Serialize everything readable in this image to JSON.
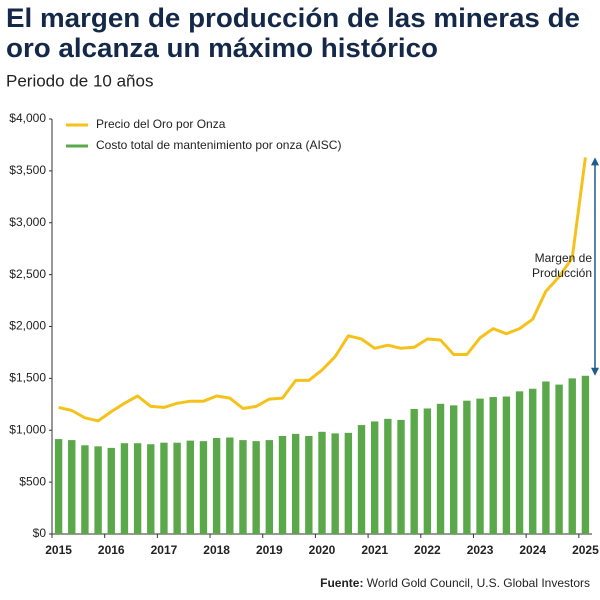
{
  "chart_data": {
    "type": "bar-line",
    "title": [
      "El margen de producción de las mineras de",
      "oro alcanza un máximo histórico"
    ],
    "subtitle": "Periodo de 10 años",
    "source": {
      "label": "Fuente:",
      "text": "World Gold Council, U.S. Global Investors"
    },
    "categories": [
      "2015",
      null,
      null,
      null,
      "2016",
      null,
      null,
      null,
      "2017",
      null,
      null,
      null,
      "2018",
      null,
      null,
      null,
      "2019",
      null,
      null,
      null,
      "2020",
      null,
      null,
      null,
      "2021",
      null,
      null,
      null,
      "2022",
      null,
      null,
      null,
      "2023",
      null,
      null,
      null,
      "2024",
      null,
      null,
      null,
      "2025"
    ],
    "series": [
      {
        "name": "Precio del Oro por Onza",
        "kind": "line",
        "color": "#f5c21b",
        "values": [
          1220,
          1190,
          1120,
          1090,
          1180,
          1260,
          1330,
          1230,
          1220,
          1260,
          1280,
          1280,
          1330,
          1310,
          1210,
          1230,
          1300,
          1310,
          1480,
          1480,
          1580,
          1710,
          1910,
          1880,
          1790,
          1820,
          1790,
          1800,
          1880,
          1870,
          1730,
          1730,
          1890,
          1980,
          1930,
          1980,
          2070,
          2340,
          2480,
          2660,
          3630
        ]
      },
      {
        "name": "Costo total de mantenimiento por onza (AISC)",
        "kind": "bar",
        "color": "#5aa84a",
        "values": [
          915,
          905,
          855,
          845,
          830,
          875,
          875,
          865,
          880,
          880,
          900,
          895,
          925,
          930,
          905,
          895,
          905,
          945,
          965,
          945,
          985,
          970,
          975,
          1050,
          1085,
          1110,
          1100,
          1205,
          1210,
          1255,
          1240,
          1285,
          1305,
          1320,
          1325,
          1375,
          1400,
          1470,
          1440,
          1500,
          1525
        ]
      }
    ],
    "ylim": [
      0,
      4000
    ],
    "yticks": [
      {
        "value": 0,
        "label": "$0"
      },
      {
        "value": 500,
        "label": "$500"
      },
      {
        "value": 1000,
        "label": "$1,000"
      },
      {
        "value": 1500,
        "label": "$1,500"
      },
      {
        "value": 2000,
        "label": "$2,000"
      },
      {
        "value": 2500,
        "label": "$2,500"
      },
      {
        "value": 3000,
        "label": "$3,000"
      },
      {
        "value": 3500,
        "label": "$3,500"
      },
      {
        "value": 4000,
        "label": "$4,000"
      }
    ],
    "annotation": [
      "Margen de",
      "Producción"
    ],
    "annotation_color": "#1f5c8a",
    "legend": "top-left"
  }
}
